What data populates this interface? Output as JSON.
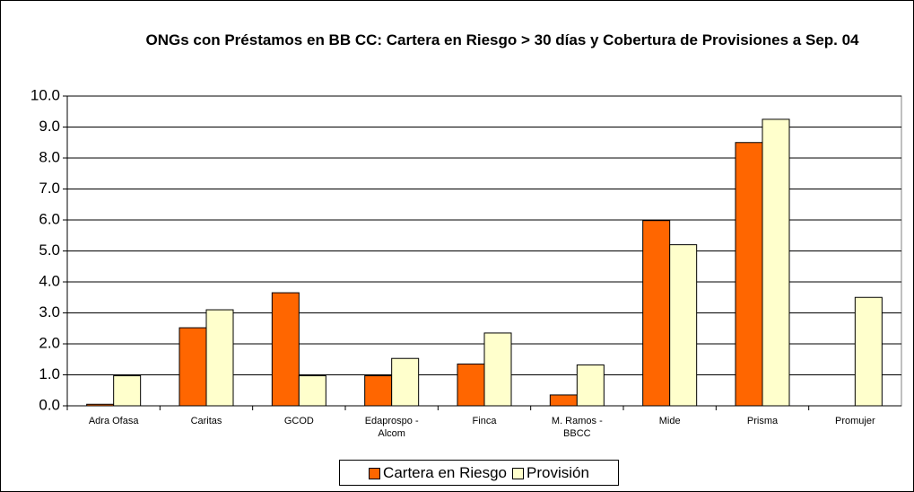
{
  "chart_data": {
    "type": "bar",
    "title": "ONGs con Préstamos en BB CC:  Cartera en Riesgo > 30 días y Cobertura de Provisiones  a Sep. 04",
    "categories": [
      "Adra Ofasa",
      "Caritas",
      "GCOD",
      "Edaprospo - Alcom",
      "Finca",
      "M. Ramos - BBCC",
      "Mide",
      "Prisma",
      "Promujer"
    ],
    "series": [
      {
        "name": "Cartera en Riesgo",
        "color": "#ff6600",
        "values": [
          0.05,
          2.52,
          3.65,
          0.97,
          1.35,
          0.35,
          5.98,
          8.5,
          0
        ]
      },
      {
        "name": "Provisión",
        "color": "#ffffcc",
        "values": [
          0.97,
          3.1,
          0.97,
          1.53,
          2.35,
          1.32,
          5.2,
          9.25,
          3.5
        ]
      }
    ],
    "ylim": [
      0,
      10
    ],
    "yticks": [
      {
        "value": 0,
        "label": "0.0"
      },
      {
        "value": 1,
        "label": "1.0"
      },
      {
        "value": 2,
        "label": "2.0"
      },
      {
        "value": 3,
        "label": "3.0"
      },
      {
        "value": 4,
        "label": "4.0"
      },
      {
        "value": 5,
        "label": "5.0"
      },
      {
        "value": 6,
        "label": "6.0"
      },
      {
        "value": 7,
        "label": "7.0"
      },
      {
        "value": 8,
        "label": "8.0"
      },
      {
        "value": 9,
        "label": "9.0"
      },
      {
        "value": 10,
        "label": "10.0"
      }
    ],
    "grid": true,
    "legend": "bottom"
  }
}
